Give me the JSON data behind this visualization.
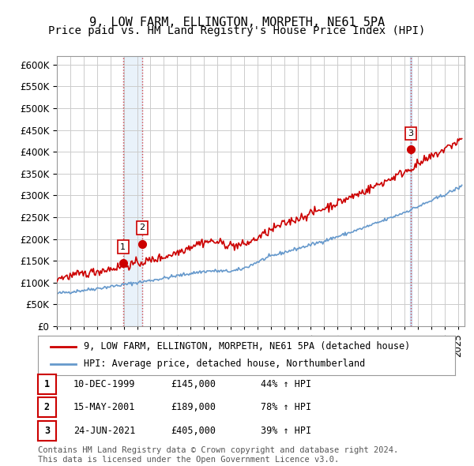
{
  "title": "9, LOW FARM, ELLINGTON, MORPETH, NE61 5PA",
  "subtitle": "Price paid vs. HM Land Registry's House Price Index (HPI)",
  "ylabel": "",
  "ylim": [
    0,
    620000
  ],
  "yticks": [
    0,
    50000,
    100000,
    150000,
    200000,
    250000,
    300000,
    350000,
    400000,
    450000,
    500000,
    550000,
    600000
  ],
  "xlim_start": 1995.0,
  "xlim_end": 2025.5,
  "bg_color": "#ffffff",
  "plot_bg_color": "#ffffff",
  "grid_color": "#cccccc",
  "transaction_color": "#cc0000",
  "hpi_color": "#6699cc",
  "transactions": [
    {
      "date": 1999.95,
      "price": 145000,
      "label": "1"
    },
    {
      "date": 2001.37,
      "price": 189000,
      "label": "2"
    },
    {
      "date": 2021.48,
      "price": 405000,
      "label": "3"
    }
  ],
  "vline_color": "#cc0000",
  "vline_style": ":",
  "vline_alpha": 0.7,
  "shade_color": "#aaccee",
  "shade_alpha": 0.25,
  "legend_entries": [
    "9, LOW FARM, ELLINGTON, MORPETH, NE61 5PA (detached house)",
    "HPI: Average price, detached house, Northumberland"
  ],
  "table_rows": [
    {
      "num": "1",
      "date": "10-DEC-1999",
      "price": "£145,000",
      "change": "44% ↑ HPI"
    },
    {
      "num": "2",
      "date": "15-MAY-2001",
      "price": "£189,000",
      "change": "78% ↑ HPI"
    },
    {
      "num": "3",
      "date": "24-JUN-2021",
      "price": "£405,000",
      "change": "39% ↑ HPI"
    }
  ],
  "footnote": "Contains HM Land Registry data © Crown copyright and database right 2024.\nThis data is licensed under the Open Government Licence v3.0.",
  "title_fontsize": 11,
  "subtitle_fontsize": 10,
  "tick_fontsize": 8.5,
  "legend_fontsize": 8.5,
  "table_fontsize": 8.5,
  "footnote_fontsize": 7.5
}
